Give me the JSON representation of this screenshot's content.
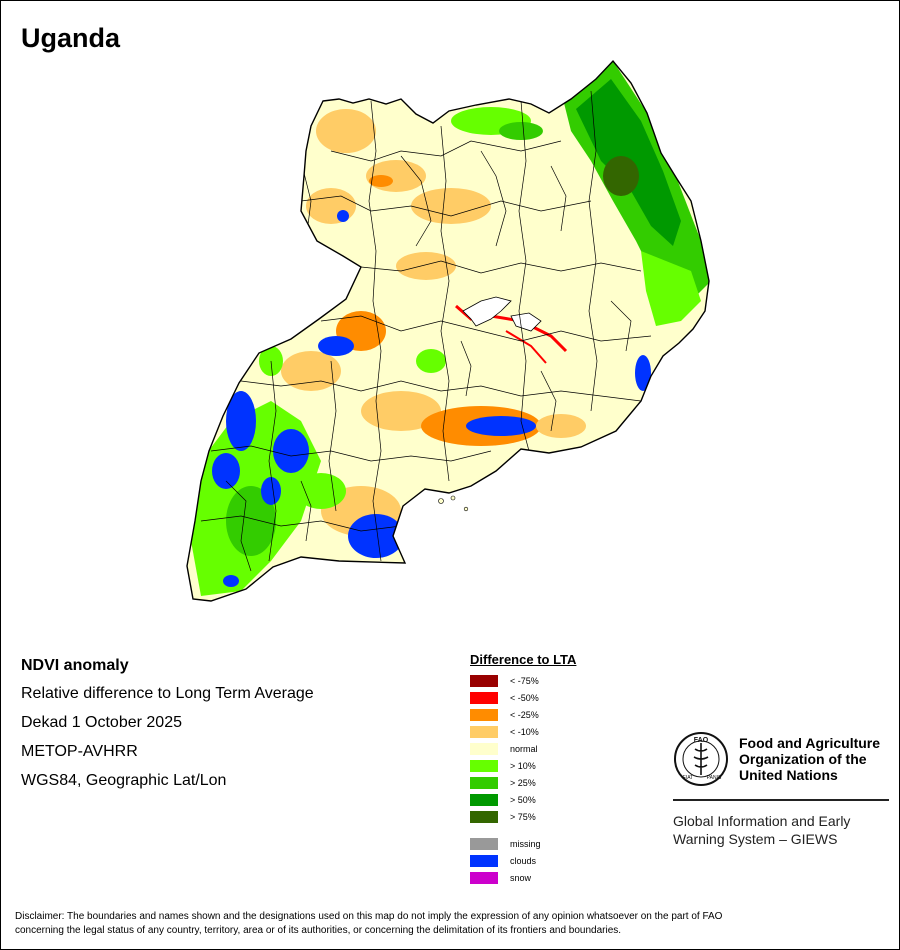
{
  "map": {
    "title": "Uganda"
  },
  "info": {
    "heading": "NDVI anomaly",
    "subtitle": "Relative difference to Long Term Average",
    "period": "Dekad 1 October 2025",
    "sensor": "METOP-AVHRR",
    "projection": "WGS84, Geographic Lat/Lon"
  },
  "legend": {
    "title": "Difference to LTA",
    "items": [
      {
        "label": "< -75%",
        "color": "#990000"
      },
      {
        "label": "< -50%",
        "color": "#ff0000"
      },
      {
        "label": "< -25%",
        "color": "#ff8c00"
      },
      {
        "label": "< -10%",
        "color": "#ffcc66"
      },
      {
        "label": "normal",
        "color": "#ffffcc"
      },
      {
        "label": "> 10%",
        "color": "#66ff00"
      },
      {
        "label": "> 25%",
        "color": "#33cc00"
      },
      {
        "label": "> 50%",
        "color": "#009900"
      },
      {
        "label": "> 75%",
        "color": "#336600"
      }
    ],
    "other": [
      {
        "label": "missing",
        "color": "#999999"
      },
      {
        "label": "clouds",
        "color": "#0033ff"
      },
      {
        "label": "snow",
        "color": "#cc00cc"
      }
    ]
  },
  "logo": {
    "org_line1": "Food and Agriculture",
    "org_line2": "Organization of the",
    "org_line3": "United Nations",
    "giews_line1": "Global Information and Early",
    "giews_line2": "Warning System – GIEWS",
    "emblem_text": "FAO",
    "emblem_motto_left": "FIAT",
    "emblem_motto_right": "PANIS"
  },
  "disclaimer": {
    "line1": "Disclaimer: The boundaries and names shown and the designations used on this map do not imply the expression of any opinion whatsoever on the part of FAO",
    "line2": "concerning the legal status of any country, territory, area or of its authorities, or concerning the delimitation of its frontiers and boundaries."
  }
}
